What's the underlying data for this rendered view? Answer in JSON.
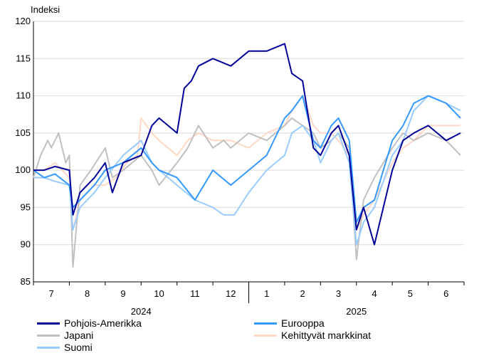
{
  "chart_data": {
    "type": "line",
    "ylabel": "Indeksi",
    "ylim": [
      85,
      120
    ],
    "y_ticks": [
      85,
      90,
      95,
      100,
      105,
      110,
      115,
      120
    ],
    "xlim": [
      0,
      12
    ],
    "month_labels": [
      "7",
      "8",
      "9",
      "10",
      "11",
      "12",
      "1",
      "2",
      "3",
      "4",
      "5",
      "6"
    ],
    "year_labels": [
      "2024",
      "2025"
    ],
    "grid": "horizontal",
    "legend_position": "bottom",
    "series": [
      {
        "name": "Pohjois-Amerikka",
        "color": "#000099",
        "x": [
          0,
          0.3,
          0.6,
          1.0,
          1.1,
          1.3,
          1.7,
          2.0,
          2.2,
          2.5,
          3.0,
          3.3,
          3.5,
          4.0,
          4.2,
          4.4,
          4.6,
          5.0,
          5.5,
          6.0,
          6.5,
          7.0,
          7.2,
          7.5,
          7.8,
          8.0,
          8.3,
          8.5,
          8.8,
          9.0,
          9.2,
          9.5,
          10.0,
          10.3,
          10.6,
          11.0,
          11.5,
          11.9
        ],
        "values": [
          100,
          100,
          100.5,
          100,
          94,
          97,
          99,
          101,
          97,
          101,
          102,
          106,
          107,
          105,
          111,
          112,
          114,
          115,
          114,
          116,
          116,
          117,
          113,
          112,
          103,
          102,
          105,
          106,
          102,
          92,
          95,
          90,
          100,
          104,
          105,
          106,
          104,
          105
        ]
      },
      {
        "name": "Eurooppa",
        "color": "#3399ff",
        "x": [
          0,
          0.3,
          0.6,
          1.0,
          1.1,
          1.3,
          1.7,
          2.0,
          2.5,
          3.0,
          3.3,
          3.5,
          4.0,
          4.5,
          5.0,
          5.5,
          6.0,
          6.5,
          7.0,
          7.2,
          7.5,
          7.8,
          8.0,
          8.3,
          8.5,
          8.8,
          9.0,
          9.2,
          9.5,
          10.0,
          10.3,
          10.6,
          11.0,
          11.5,
          11.9
        ],
        "values": [
          100,
          99,
          99.5,
          98,
          95,
          96,
          98,
          100,
          101,
          103,
          101,
          100,
          99,
          96,
          100,
          98,
          100,
          102,
          107,
          108,
          110,
          104,
          103,
          106,
          107,
          104,
          93,
          95,
          96,
          104,
          106,
          109,
          110,
          109,
          107
        ]
      },
      {
        "name": "Japani",
        "color": "#c0c0c0",
        "x": [
          0,
          0.2,
          0.4,
          0.5,
          0.7,
          0.9,
          1.0,
          1.1,
          1.3,
          1.6,
          2.0,
          2.2,
          2.5,
          3.0,
          3.3,
          3.5,
          4.0,
          4.3,
          4.6,
          5.0,
          5.3,
          5.5,
          6.0,
          6.5,
          7.0,
          7.2,
          7.5,
          7.8,
          8.0,
          8.3,
          8.5,
          8.8,
          9.0,
          9.2,
          9.5,
          10.0,
          10.3,
          10.6,
          11.0,
          11.5,
          11.9
        ],
        "values": [
          99,
          102,
          104,
          103,
          105,
          101,
          102,
          87,
          98,
          100,
          103,
          99,
          100,
          102,
          100,
          98,
          101,
          103,
          106,
          103,
          104,
          103,
          105,
          104,
          106,
          107,
          106,
          105,
          103,
          104,
          105,
          103,
          88,
          96,
          99,
          103,
          105,
          104,
          105,
          104,
          102
        ]
      },
      {
        "name": "Kehittyvät markkinat",
        "color": "#ffd7c6",
        "x": [
          0,
          0.3,
          0.6,
          1.0,
          1.1,
          1.3,
          1.7,
          2.0,
          2.3,
          2.6,
          2.9,
          3.0,
          3.3,
          3.5,
          4.0,
          4.3,
          4.6,
          5.0,
          5.5,
          6.0,
          6.5,
          7.0,
          7.2,
          7.5,
          7.8,
          8.0,
          8.3,
          8.5,
          8.8,
          9.0,
          9.2,
          9.5,
          10.0,
          10.3,
          10.6,
          11.0,
          11.5,
          11.9
        ],
        "values": [
          100,
          100,
          101,
          99,
          92,
          96,
          98,
          98,
          99,
          101,
          102,
          107,
          105,
          104,
          102,
          104,
          105,
          104,
          104,
          103,
          105,
          106,
          108,
          110,
          106,
          105,
          105,
          104,
          102,
          92,
          94,
          96,
          101,
          103,
          104,
          106,
          106,
          106
        ]
      },
      {
        "name": "Suomi",
        "color": "#99ccff",
        "x": [
          0,
          0.3,
          0.6,
          1.0,
          1.1,
          1.3,
          1.7,
          2.0,
          2.5,
          3.0,
          3.3,
          3.5,
          4.0,
          4.5,
          5.0,
          5.3,
          5.6,
          6.0,
          6.5,
          7.0,
          7.2,
          7.5,
          7.8,
          8.0,
          8.3,
          8.5,
          8.8,
          9.0,
          9.2,
          9.5,
          10.0,
          10.3,
          10.6,
          11.0,
          11.5,
          11.9
        ],
        "values": [
          99,
          99,
          98.5,
          98,
          92,
          95,
          97,
          99,
          102,
          104,
          101,
          100,
          98,
          96,
          95,
          94,
          94,
          97,
          100,
          102,
          105,
          106,
          104,
          101,
          104,
          105,
          101,
          90,
          93,
          95,
          102,
          104,
          108,
          110,
          109,
          108
        ]
      }
    ]
  }
}
